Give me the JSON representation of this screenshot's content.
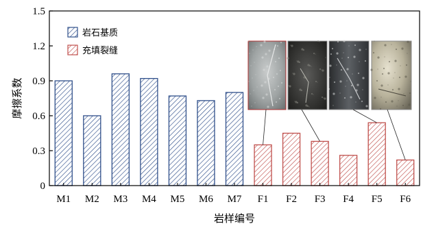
{
  "chart_data": {
    "type": "bar",
    "categories": [
      "M1",
      "M2",
      "M3",
      "M4",
      "M5",
      "M6",
      "M7",
      "F1",
      "F2",
      "F3",
      "F4",
      "F5",
      "F6"
    ],
    "series": [
      {
        "name": "岩石基质",
        "color": "#2f4f8a",
        "hatch": "diagonal-blue",
        "values": [
          0.9,
          0.6,
          0.96,
          0.92,
          0.77,
          0.73,
          0.8,
          null,
          null,
          null,
          null,
          null,
          null
        ]
      },
      {
        "name": "充填裂缝",
        "color": "#c0504d",
        "hatch": "diagonal-red",
        "values": [
          null,
          null,
          null,
          null,
          null,
          null,
          null,
          0.35,
          0.45,
          0.38,
          0.26,
          0.54,
          0.22
        ]
      }
    ],
    "xlabel": "岩样编号",
    "ylabel": "摩擦系数",
    "ylim": [
      0,
      1.5
    ],
    "yticks": [
      "0",
      "0.3",
      "0.6",
      "0.9",
      "1.2",
      "1.5"
    ],
    "legend_placement": "top-left",
    "grid": false,
    "inset_photos": [
      {
        "name": "rock-photo-1",
        "tone": "light-gray",
        "linked_category": "F1"
      },
      {
        "name": "rock-photo-2",
        "tone": "dark-speckled",
        "linked_category": "F3"
      },
      {
        "name": "rock-photo-3",
        "tone": "dark-gray",
        "linked_category": "F5"
      },
      {
        "name": "rock-photo-4",
        "tone": "light-mottled",
        "linked_category": "F6"
      }
    ]
  }
}
